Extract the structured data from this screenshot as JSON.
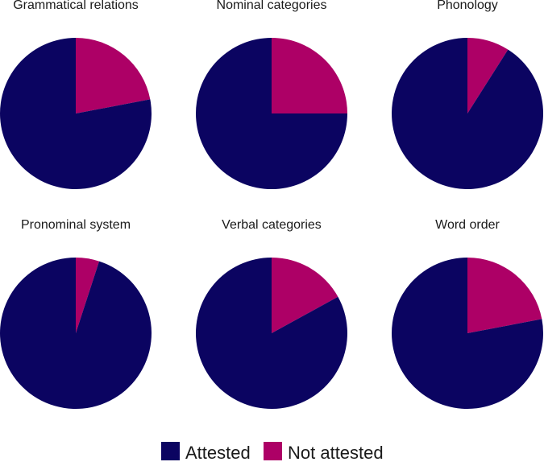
{
  "chart_data": [
    {
      "type": "pie",
      "title": "Grammatical relations",
      "slices": [
        {
          "label": "Attested",
          "value": 78
        },
        {
          "label": "Not attested",
          "value": 22
        }
      ]
    },
    {
      "type": "pie",
      "title": "Nominal categories",
      "slices": [
        {
          "label": "Attested",
          "value": 75
        },
        {
          "label": "Not attested",
          "value": 25
        }
      ]
    },
    {
      "type": "pie",
      "title": "Phonology",
      "slices": [
        {
          "label": "Attested",
          "value": 91
        },
        {
          "label": "Not attested",
          "value": 9
        }
      ]
    },
    {
      "type": "pie",
      "title": "Pronominal system",
      "slices": [
        {
          "label": "Attested",
          "value": 95
        },
        {
          "label": "Not attested",
          "value": 5
        }
      ]
    },
    {
      "type": "pie",
      "title": "Verbal categories",
      "slices": [
        {
          "label": "Attested",
          "value": 83
        },
        {
          "label": "Not attested",
          "value": 17
        }
      ]
    },
    {
      "type": "pie",
      "title": "Word order",
      "slices": [
        {
          "label": "Attested",
          "value": 78
        },
        {
          "label": "Not attested",
          "value": 22
        }
      ]
    }
  ],
  "legend": {
    "items": [
      {
        "label": "Attested",
        "color": "#0b0461"
      },
      {
        "label": "Not attested",
        "color": "#ad0066"
      }
    ]
  },
  "colors": {
    "Attested": "#0b0461",
    "Not attested": "#ad0066"
  }
}
